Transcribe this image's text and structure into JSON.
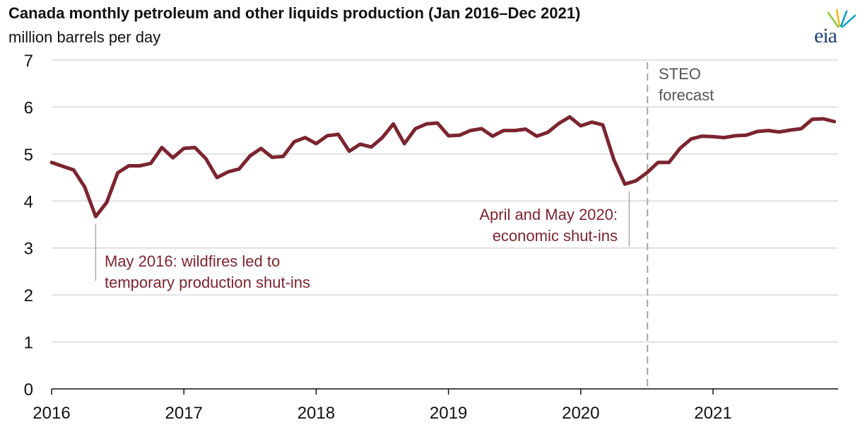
{
  "header": {
    "title": "Canada monthly petroleum and other liquids production (Jan 2016–Dec 2021)",
    "subtitle": "million barrels per day",
    "logo_text": "eia"
  },
  "colors": {
    "series": "#7b2530",
    "grid": "#d9d9d9",
    "forecast_line": "#a6a6a6",
    "annotation_leader": "#a6a6a6",
    "logo_text": "#1f3f73",
    "logo_rays": [
      "#8dc63f",
      "#f7b515",
      "#00a0c6"
    ]
  },
  "annotations": {
    "wildfire_line1": "May 2016: wildfires led to",
    "wildfire_line2": "temporary production shut-ins",
    "shutin_line1": "April and May 2020:",
    "shutin_line2": "economic shut-ins",
    "forecast_line1": "STEO",
    "forecast_line2": "forecast"
  },
  "chart_data": {
    "type": "line",
    "title": "Canada monthly petroleum and other liquids production (Jan 2016–Dec 2021)",
    "ylabel": "million barrels per day",
    "xlabel": "",
    "ylim": [
      0,
      7
    ],
    "yticks": [
      "0",
      "1",
      "2",
      "3",
      "4",
      "5",
      "6",
      "7"
    ],
    "xticks": [
      "2016",
      "2017",
      "2018",
      "2019",
      "2020",
      "2021"
    ],
    "grid": "horizontal",
    "forecast_start": "2020-07",
    "x_start": "2016-01",
    "x_end": "2021-12",
    "series": [
      {
        "values": [
          4.82,
          4.74,
          4.66,
          4.3,
          3.67,
          3.97,
          4.6,
          4.75,
          4.75,
          4.8,
          5.14,
          4.92,
          5.12,
          5.14,
          4.9,
          4.5,
          4.62,
          4.68,
          4.96,
          5.12,
          4.93,
          4.95,
          5.26,
          5.35,
          5.22,
          5.39,
          5.42,
          5.06,
          5.21,
          5.15,
          5.35,
          5.64,
          5.22,
          5.54,
          5.64,
          5.66,
          5.39,
          5.4,
          5.5,
          5.54,
          5.38,
          5.5,
          5.5,
          5.53,
          5.38,
          5.46,
          5.65,
          5.79,
          5.6,
          5.68,
          5.62,
          4.88,
          4.36,
          4.43,
          4.6,
          4.82,
          4.82,
          5.12,
          5.32,
          5.38,
          5.37,
          5.35,
          5.39,
          5.4,
          5.48,
          5.5,
          5.47,
          5.51,
          5.54,
          5.74,
          5.75,
          5.69
        ]
      }
    ]
  }
}
